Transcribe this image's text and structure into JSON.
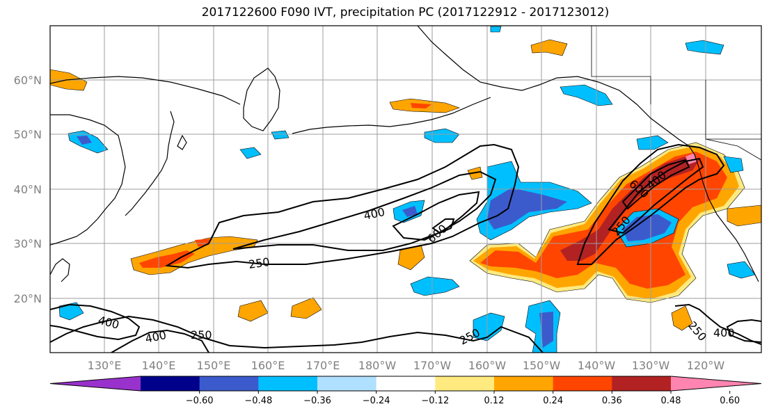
{
  "title": "2017122600 F090 IVT, precipitation PC (2017122912 - 2017123012)",
  "lat_labels": [
    "60°N",
    "50°N",
    "40°N",
    "30°N",
    "20°N"
  ],
  "lon_labels": [
    "130°E",
    "140°E",
    "150°E",
    "160°E",
    "170°E",
    "180°W",
    "170°W",
    "160°W",
    "150°W",
    "140°W",
    "130°W",
    "120°W"
  ],
  "colorbar": {
    "colors": [
      "#9932cc",
      "#00008b",
      "#3b5bcc",
      "#00bfff",
      "#b0e0ff",
      "#ffffff",
      "#ffea80",
      "#ffa500",
      "#ff4500",
      "#b22222",
      "#ff85b0"
    ],
    "ticks": [
      "−0.60",
      "−0.48",
      "−0.36",
      "−0.24",
      "−0.12",
      "0.12",
      "0.24",
      "0.36",
      "0.48",
      "0.60"
    ]
  },
  "ivt_contour_labels": [
    "400",
    "600",
    "250",
    "400",
    "400",
    "250",
    "250",
    "600",
    "400",
    "250",
    "250",
    "400"
  ]
}
